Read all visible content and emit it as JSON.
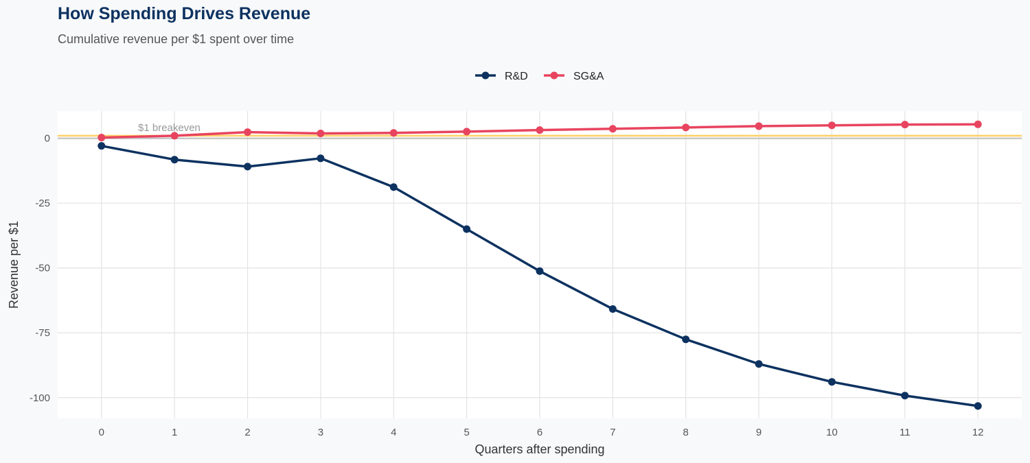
{
  "chart_data": {
    "type": "line",
    "title": "How Spending Drives Revenue",
    "subtitle": "Cumulative revenue per $1 spent over time",
    "xlabel": "Quarters after spending",
    "ylabel": "Revenue per $1",
    "x": [
      0,
      1,
      2,
      3,
      4,
      5,
      6,
      7,
      8,
      9,
      10,
      11,
      12
    ],
    "xlim": [
      -0.6,
      12.6
    ],
    "ylim": [
      -108,
      10.5
    ],
    "yticks": [
      0,
      -25,
      -50,
      -75,
      -100
    ],
    "ytick_labels": [
      "0",
      "-25",
      "-50",
      "-75",
      "-100"
    ],
    "xtick_labels": [
      "0",
      "1",
      "2",
      "3",
      "4",
      "5",
      "6",
      "7",
      "8",
      "9",
      "10",
      "11",
      "12"
    ],
    "grid": true,
    "legend_position": "top",
    "series": [
      {
        "name": "R&D",
        "color": "#0d3260",
        "values": [
          -2.9,
          -8.2,
          -10.9,
          -7.7,
          -18.8,
          -35.0,
          -51.2,
          -65.8,
          -77.5,
          -87.0,
          -93.9,
          -99.2,
          -103.2
        ]
      },
      {
        "name": "SG&A",
        "color": "#e8445f",
        "values": [
          0.3,
          1.0,
          2.4,
          1.9,
          2.1,
          2.6,
          3.2,
          3.7,
          4.2,
          4.7,
          5.0,
          5.3,
          5.4
        ]
      }
    ],
    "reference_lines": [
      {
        "y": 1,
        "label": "$1 breakeven",
        "color": "#ffd166"
      },
      {
        "y": 0,
        "color": "#c8c8c8"
      }
    ]
  }
}
